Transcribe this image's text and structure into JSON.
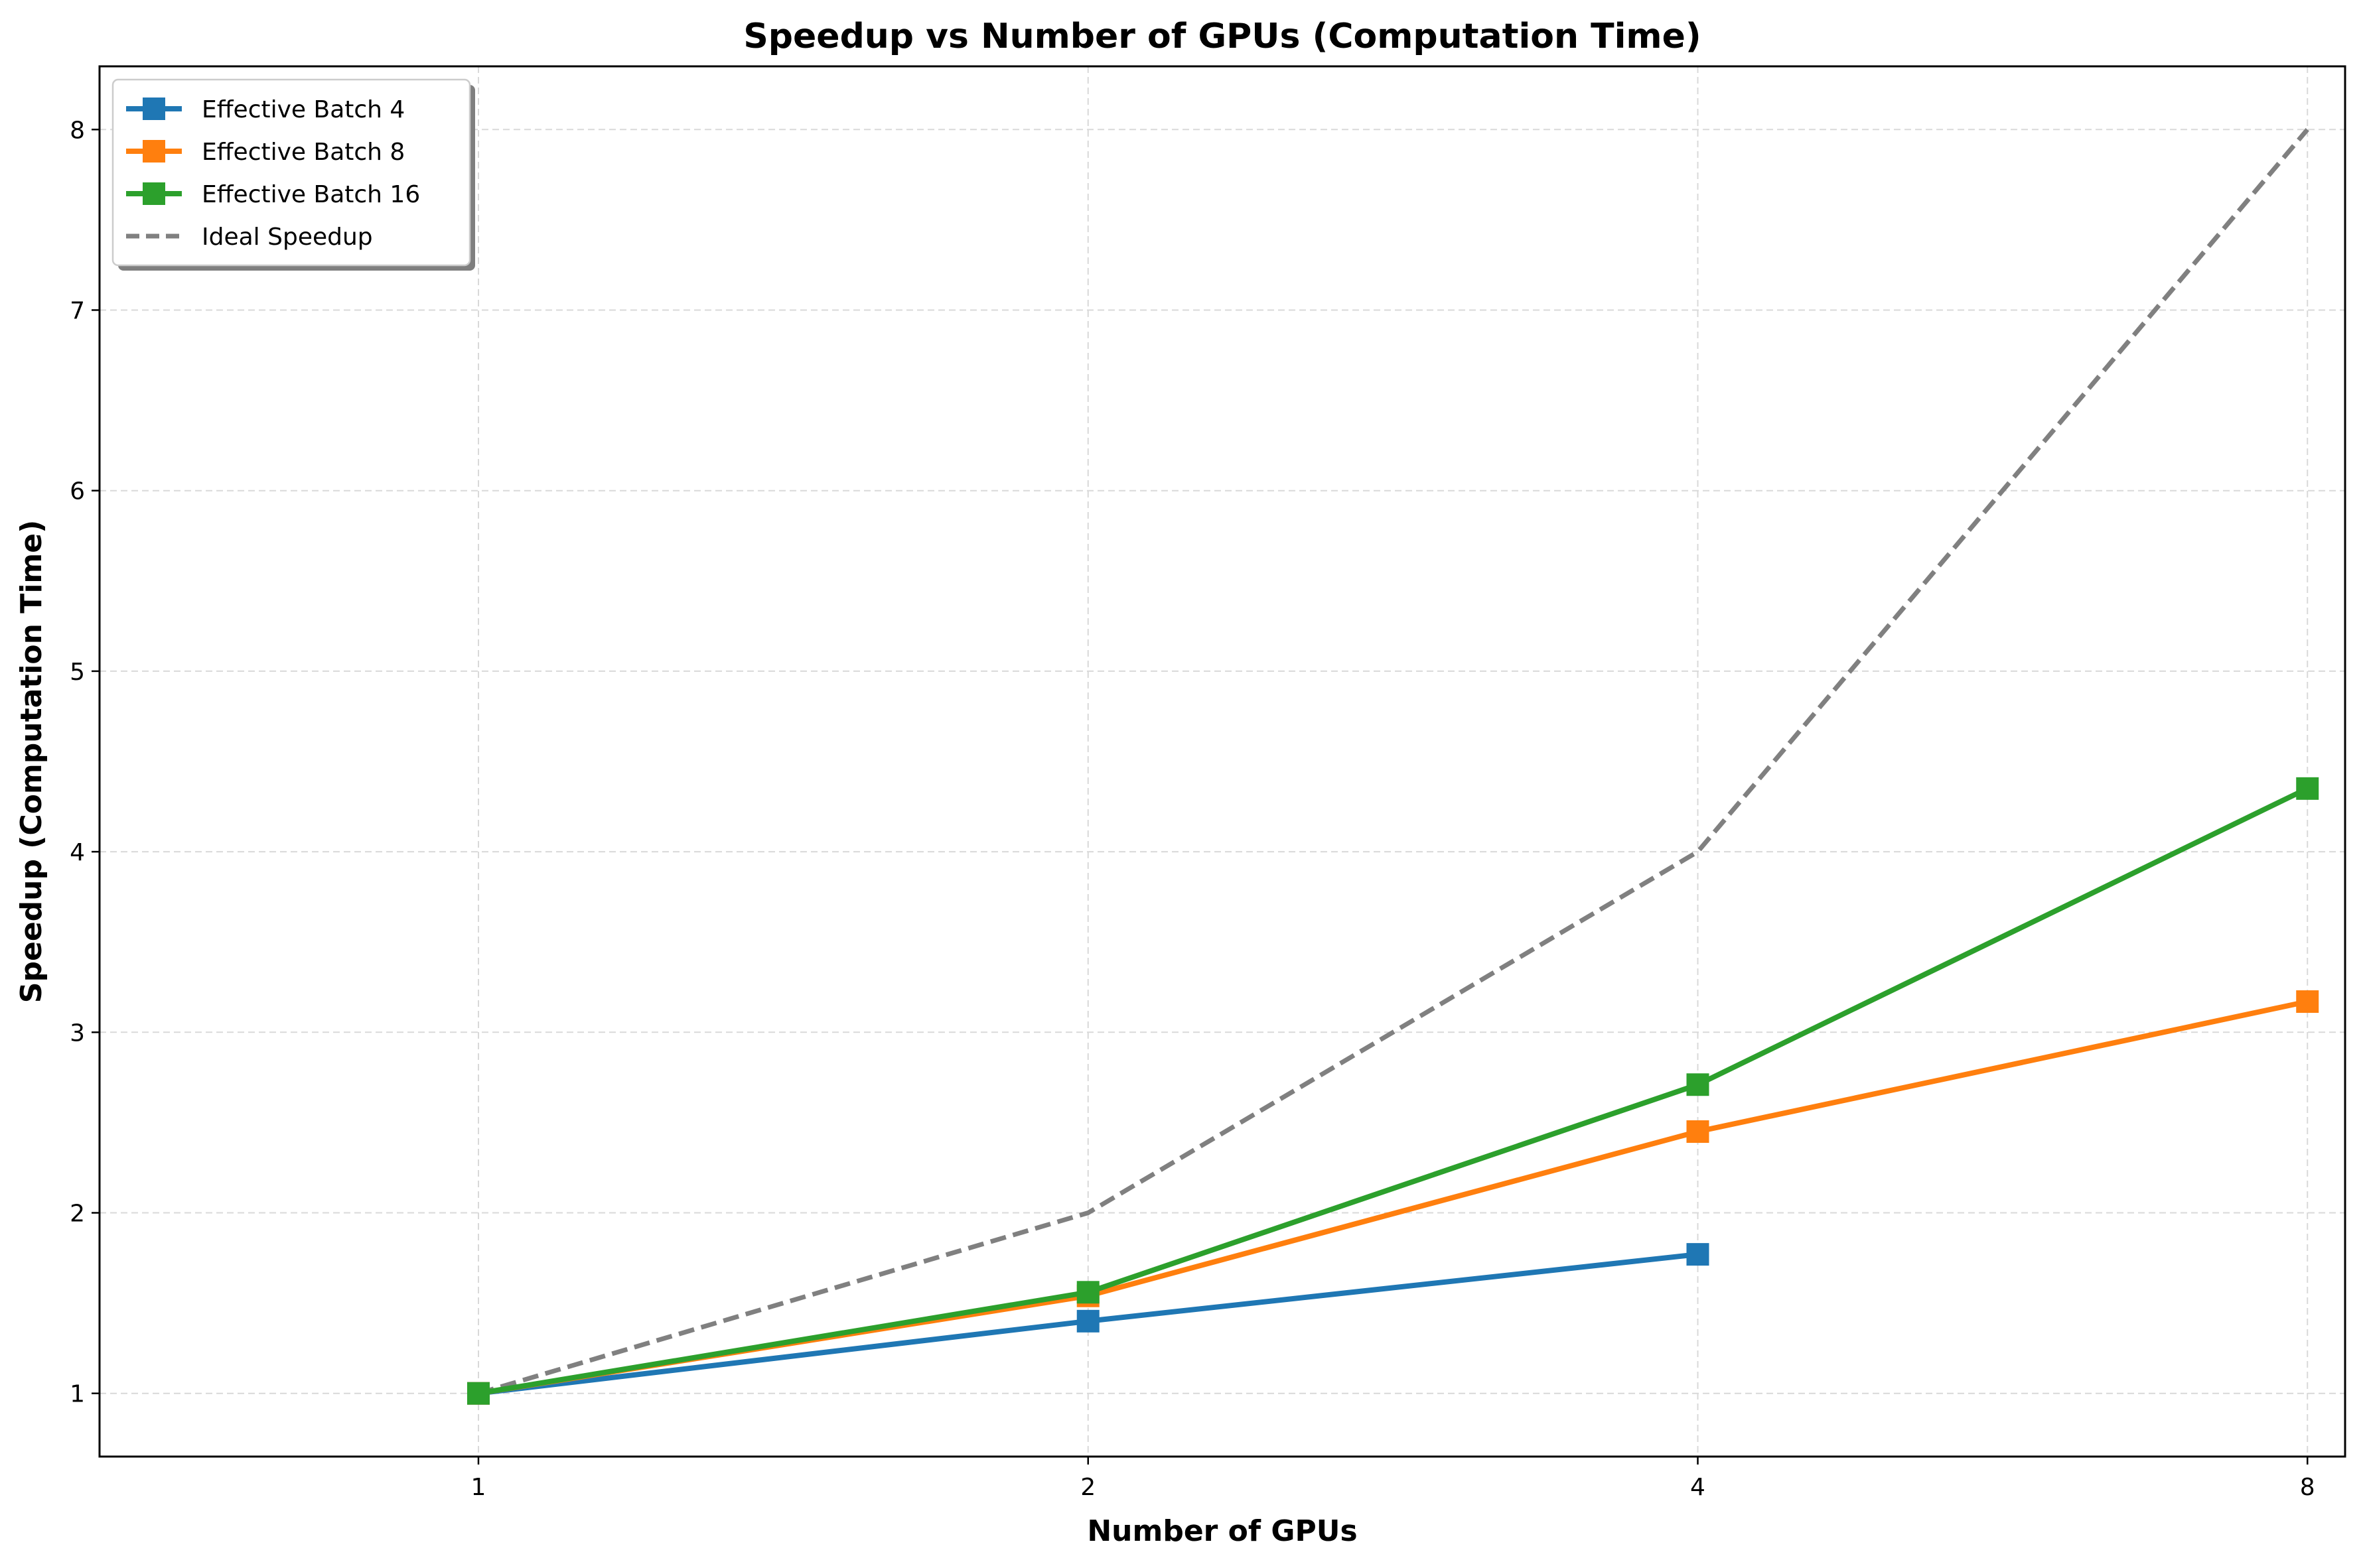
{
  "chart_data": {
    "type": "line",
    "title": "Speedup vs Number of GPUs (Computation Time)",
    "xlabel": "Number of GPUs",
    "ylabel": "Speedup (Computation Time)",
    "x_ticks": [
      1,
      2,
      4,
      8
    ],
    "x_tick_labels": [
      "1",
      "2",
      "4",
      "8"
    ],
    "y_ticks": [
      1,
      2,
      3,
      4,
      5,
      6,
      7,
      8
    ],
    "y_tick_labels": [
      "1",
      "2",
      "3",
      "4",
      "5",
      "6",
      "7",
      "8"
    ],
    "xlim": [
      0.65,
      8.35
    ],
    "ylim": [
      0.65,
      8.35
    ],
    "grid": true,
    "legend_position": "top-left",
    "series": [
      {
        "name": "Effective Batch 4",
        "color": "#1f77b4",
        "marker": "square",
        "style": "solid",
        "x": [
          1,
          2,
          4
        ],
        "y": [
          1.0,
          1.4,
          1.77
        ]
      },
      {
        "name": "Effective Batch 8",
        "color": "#ff7f0e",
        "marker": "square",
        "style": "solid",
        "x": [
          1,
          2,
          4,
          8
        ],
        "y": [
          1.0,
          1.54,
          2.45,
          3.17
        ]
      },
      {
        "name": "Effective Batch 16",
        "color": "#2ca02c",
        "marker": "square",
        "style": "solid",
        "x": [
          1,
          2,
          4,
          8
        ],
        "y": [
          1.0,
          1.56,
          2.71,
          4.35
        ]
      },
      {
        "name": "Ideal Speedup",
        "color": "#808080",
        "marker": "none",
        "style": "dashed",
        "x": [
          1,
          2,
          4,
          8
        ],
        "y": [
          1,
          2,
          4,
          8
        ]
      }
    ]
  }
}
